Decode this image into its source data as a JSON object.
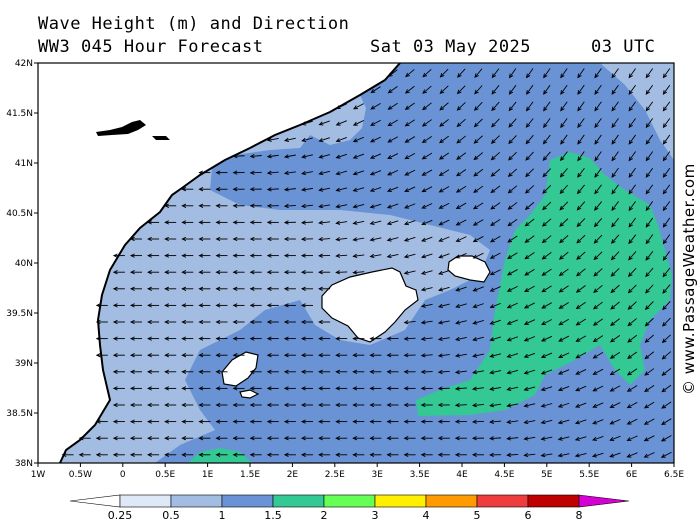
{
  "header": {
    "line1": "Wave Height (m) and Direction",
    "model": "WW3 045 Hour Forecast",
    "date": "Sat 03 May 2025",
    "time": "03 UTC"
  },
  "credit": "© www.PassageWeather.com",
  "axes": {
    "lat_labels": [
      "42N",
      "41.5N",
      "41N",
      "40.5N",
      "40N",
      "39.5N",
      "39N",
      "38.5N",
      "38N"
    ],
    "lon_labels": [
      "1W",
      "0.5W",
      "0",
      "0.5E",
      "1E",
      "1.5E",
      "2E",
      "2.5E",
      "3E",
      "3.5E",
      "4E",
      "4.5E",
      "5E",
      "5.5E",
      "6E",
      "6.5E"
    ],
    "lat_range": [
      38,
      42
    ],
    "lon_range": [
      -1,
      6.5
    ]
  },
  "legend": {
    "labels": [
      "0.25",
      "0.5",
      "1",
      "1.5",
      "2",
      "3",
      "4",
      "5",
      "6",
      "8"
    ],
    "colors": [
      "#ffffff",
      "#dfe8f6",
      "#a3bde2",
      "#6a93d6",
      "#33c894",
      "#66ff55",
      "#ffef00",
      "#ff9a00",
      "#ef3c3c",
      "#c00000",
      "#d400d4"
    ]
  },
  "colors": {
    "land": "#ffffff",
    "coast": "#000000",
    "arrow": "#000000"
  }
}
